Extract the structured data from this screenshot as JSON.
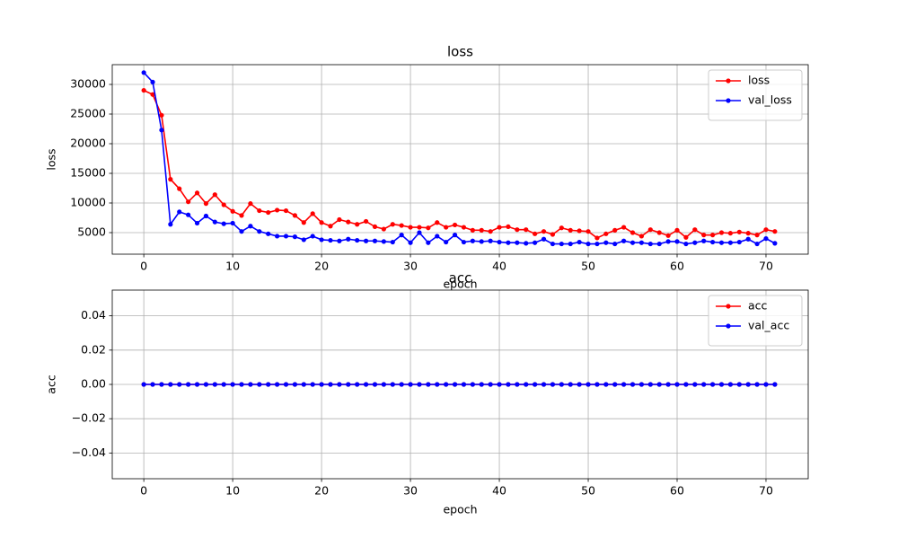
{
  "chart_data": [
    {
      "type": "line",
      "title": "loss",
      "x_label": "epoch",
      "y_label": "loss",
      "x": [
        0,
        1,
        2,
        3,
        4,
        5,
        6,
        7,
        8,
        9,
        10,
        11,
        12,
        13,
        14,
        15,
        16,
        17,
        18,
        19,
        20,
        21,
        22,
        23,
        24,
        25,
        26,
        27,
        28,
        29,
        30,
        31,
        32,
        33,
        34,
        35,
        36,
        37,
        38,
        39,
        40,
        41,
        42,
        43,
        44,
        45,
        46,
        47,
        48,
        49,
        50,
        51,
        52,
        53,
        54,
        55,
        56,
        57,
        58,
        59,
        60,
        61,
        62,
        63,
        64,
        65,
        66,
        67,
        68,
        69,
        70,
        71
      ],
      "series": [
        {
          "name": "loss",
          "color": "#ff0000",
          "values": [
            29000,
            28300,
            24800,
            14000,
            12400,
            10200,
            11700,
            9900,
            11400,
            9700,
            8600,
            7900,
            9900,
            8700,
            8400,
            8800,
            8700,
            7900,
            6700,
            8200,
            6700,
            6100,
            7200,
            6800,
            6400,
            6900,
            6000,
            5600,
            6400,
            6200,
            5900,
            5900,
            5800,
            6700,
            5900,
            6300,
            5900,
            5400,
            5400,
            5200,
            5900,
            6000,
            5500,
            5500,
            4800,
            5200,
            4700,
            5800,
            5400,
            5300,
            5200,
            4100,
            4800,
            5400,
            5900,
            5000,
            4400,
            5500,
            5000,
            4500,
            5400,
            4200,
            5500,
            4600,
            4600,
            5000,
            4900,
            5100,
            4900,
            4600,
            5500,
            5200
          ]
        },
        {
          "name": "val_loss",
          "color": "#0000ff",
          "values": [
            32000,
            30400,
            22300,
            6400,
            8500,
            8000,
            6600,
            7800,
            6800,
            6500,
            6600,
            5200,
            6100,
            5200,
            4800,
            4400,
            4400,
            4300,
            3800,
            4400,
            3800,
            3700,
            3600,
            3900,
            3700,
            3600,
            3600,
            3500,
            3400,
            4600,
            3300,
            5000,
            3300,
            4400,
            3400,
            4600,
            3400,
            3600,
            3500,
            3600,
            3400,
            3300,
            3300,
            3200,
            3300,
            3900,
            3100,
            3100,
            3100,
            3400,
            3100,
            3100,
            3300,
            3100,
            3600,
            3300,
            3300,
            3100,
            3100,
            3500,
            3500,
            3100,
            3300,
            3600,
            3400,
            3300,
            3300,
            3400,
            3900,
            3100,
            4000,
            3200
          ]
        }
      ],
      "xlim": [
        -3.55,
        74.75
      ],
      "xticks": [
        0,
        10,
        20,
        30,
        40,
        50,
        60,
        70
      ],
      "ylim": [
        1364,
        33333
      ],
      "yticks": [
        5000,
        10000,
        15000,
        20000,
        25000,
        30000
      ],
      "grid": true,
      "legend": "upper-right"
    },
    {
      "type": "line",
      "title": "acc",
      "x_label": "epoch",
      "y_label": "acc",
      "x": [
        0,
        1,
        2,
        3,
        4,
        5,
        6,
        7,
        8,
        9,
        10,
        11,
        12,
        13,
        14,
        15,
        16,
        17,
        18,
        19,
        20,
        21,
        22,
        23,
        24,
        25,
        26,
        27,
        28,
        29,
        30,
        31,
        32,
        33,
        34,
        35,
        36,
        37,
        38,
        39,
        40,
        41,
        42,
        43,
        44,
        45,
        46,
        47,
        48,
        49,
        50,
        51,
        52,
        53,
        54,
        55,
        56,
        57,
        58,
        59,
        60,
        61,
        62,
        63,
        64,
        65,
        66,
        67,
        68,
        69,
        70,
        71
      ],
      "series": [
        {
          "name": "acc",
          "color": "#ff0000",
          "values": [
            0,
            0,
            0,
            0,
            0,
            0,
            0,
            0,
            0,
            0,
            0,
            0,
            0,
            0,
            0,
            0,
            0,
            0,
            0,
            0,
            0,
            0,
            0,
            0,
            0,
            0,
            0,
            0,
            0,
            0,
            0,
            0,
            0,
            0,
            0,
            0,
            0,
            0,
            0,
            0,
            0,
            0,
            0,
            0,
            0,
            0,
            0,
            0,
            0,
            0,
            0,
            0,
            0,
            0,
            0,
            0,
            0,
            0,
            0,
            0,
            0,
            0,
            0,
            0,
            0,
            0,
            0,
            0,
            0,
            0,
            0,
            0
          ]
        },
        {
          "name": "val_acc",
          "color": "#0000ff",
          "values": [
            0,
            0,
            0,
            0,
            0,
            0,
            0,
            0,
            0,
            0,
            0,
            0,
            0,
            0,
            0,
            0,
            0,
            0,
            0,
            0,
            0,
            0,
            0,
            0,
            0,
            0,
            0,
            0,
            0,
            0,
            0,
            0,
            0,
            0,
            0,
            0,
            0,
            0,
            0,
            0,
            0,
            0,
            0,
            0,
            0,
            0,
            0,
            0,
            0,
            0,
            0,
            0,
            0,
            0,
            0,
            0,
            0,
            0,
            0,
            0,
            0,
            0,
            0,
            0,
            0,
            0,
            0,
            0,
            0,
            0,
            0,
            0
          ]
        }
      ],
      "xlim": [
        -3.55,
        74.75
      ],
      "xticks": [
        0,
        10,
        20,
        30,
        40,
        50,
        60,
        70
      ],
      "ylim": [
        -0.055,
        0.055
      ],
      "yticks": [
        {
          "value": -0.04,
          "label": "−0.04"
        },
        {
          "value": -0.02,
          "label": "−0.02"
        },
        {
          "value": 0,
          "label": "0.00"
        },
        0.02,
        0.04
      ],
      "grid": true,
      "legend": "upper-right"
    }
  ]
}
